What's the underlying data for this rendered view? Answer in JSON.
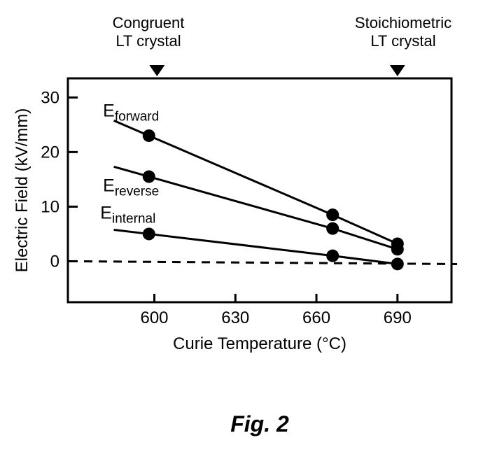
{
  "figure": {
    "caption": "Fig. 2"
  },
  "annotations": {
    "left": {
      "text": "Congruent\nLT crystal",
      "x": 601,
      "marker": "filled-triangle-down"
    },
    "right": {
      "text": "Stoichiometric\nLT crystal",
      "x": 690,
      "marker": "filled-triangle-down"
    }
  },
  "chart_data": {
    "type": "line",
    "title": "",
    "xlabel": "Curie Temperature (°C)",
    "ylabel": "Electric Field (kV/mm)",
    "xlim": [
      568,
      710
    ],
    "ylim": [
      -7.5,
      33.5
    ],
    "xticks": [
      600,
      630,
      660,
      690
    ],
    "yticks": [
      0,
      10,
      20,
      30
    ],
    "grid": false,
    "legend": "inline-labels",
    "marker": "filled-circle",
    "zero_line": {
      "style": "dashed",
      "y": 0
    },
    "colors": {
      "foreground": "#000000",
      "background": "#ffffff"
    },
    "series": [
      {
        "name": "E_forward",
        "label_main": "E",
        "label_sub": "forward",
        "x": [
          598,
          666,
          690
        ],
        "y": [
          23,
          8.5,
          3.2
        ],
        "label_pos": {
          "x": 581,
          "y": 26.5
        }
      },
      {
        "name": "E_reverse",
        "label_main": "E",
        "label_sub": "reverse",
        "x": [
          598,
          666,
          690
        ],
        "y": [
          15.5,
          6,
          2.2
        ],
        "label_pos": {
          "x": 581,
          "y": 12.8
        }
      },
      {
        "name": "E_internal",
        "label_main": "E",
        "label_sub": "internal",
        "x": [
          598,
          666,
          690
        ],
        "y": [
          5,
          1,
          -0.5
        ],
        "label_pos": {
          "x": 580,
          "y": 7.8
        }
      }
    ]
  }
}
